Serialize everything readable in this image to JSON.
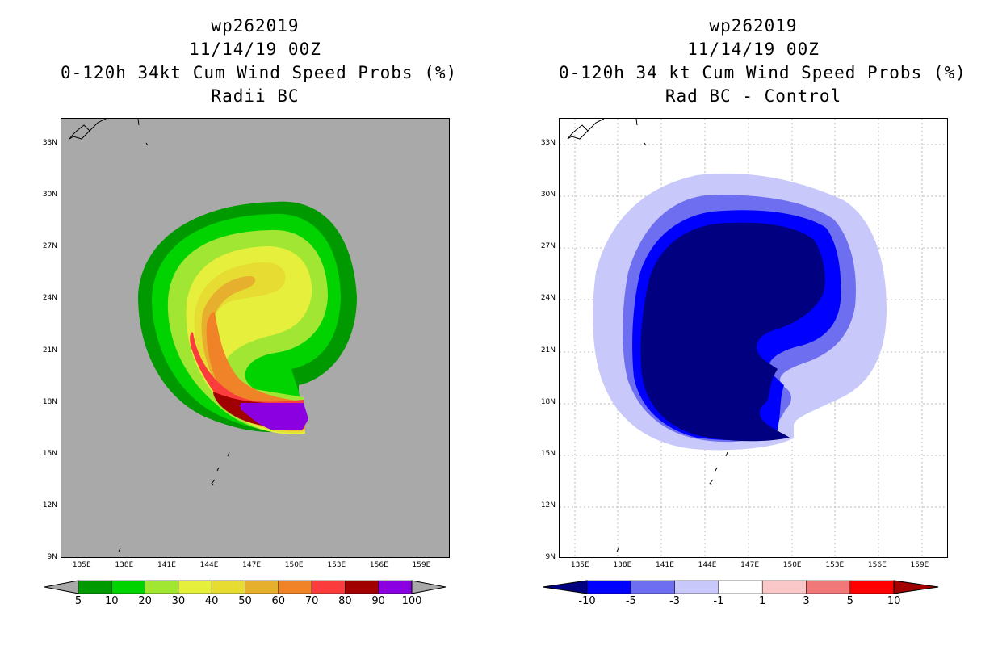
{
  "chart_data": [
    {
      "type": "heatmap",
      "title_lines": [
        "wp262019",
        "11/14/19 00Z",
        "0-120h 34kt Cum Wind Speed Probs (%)",
        "Radii BC"
      ],
      "x_ticks": [
        "135E",
        "138E",
        "141E",
        "144E",
        "147E",
        "150E",
        "153E",
        "156E",
        "159E"
      ],
      "y_ticks": [
        "9N",
        "12N",
        "15N",
        "18N",
        "21N",
        "24N",
        "27N",
        "30N",
        "33N"
      ],
      "xlim": [
        133.5,
        161.0
      ],
      "ylim": [
        9.0,
        34.5
      ],
      "grid": false,
      "colorbar": {
        "colors": [
          "#009900",
          "#00d300",
          "#a0e632",
          "#e6f03c",
          "#e6dc32",
          "#e6af2d",
          "#f08228",
          "#fa3c3c",
          "#a00000",
          "#8a00e0"
        ],
        "labels": [
          "5",
          "10",
          "20",
          "30",
          "40",
          "50",
          "60",
          "70",
          "80",
          "90",
          "100"
        ]
      }
    },
    {
      "type": "heatmap",
      "title_lines": [
        "wp262019",
        "11/14/19 00Z",
        "0-120h 34 kt Cum Wind Speed Probs (%)",
        "Rad BC - Control"
      ],
      "x_ticks": [
        "135E",
        "138E",
        "141E",
        "144E",
        "147E",
        "150E",
        "153E",
        "156E",
        "159E"
      ],
      "y_ticks": [
        "9N",
        "12N",
        "15N",
        "18N",
        "21N",
        "24N",
        "27N",
        "30N",
        "33N"
      ],
      "xlim": [
        133.5,
        161.0
      ],
      "ylim": [
        9.0,
        34.5
      ],
      "grid": true,
      "colorbar": {
        "colors": [
          "#000080",
          "#0000ff",
          "#6e6ef0",
          "#c8c8fa",
          "#ffffff",
          "#fac8c8",
          "#f07878",
          "#ff0000",
          "#a00000"
        ],
        "labels": [
          "-10",
          "-5",
          "-3",
          "-1",
          "1",
          "3",
          "5",
          "10"
        ]
      }
    }
  ]
}
